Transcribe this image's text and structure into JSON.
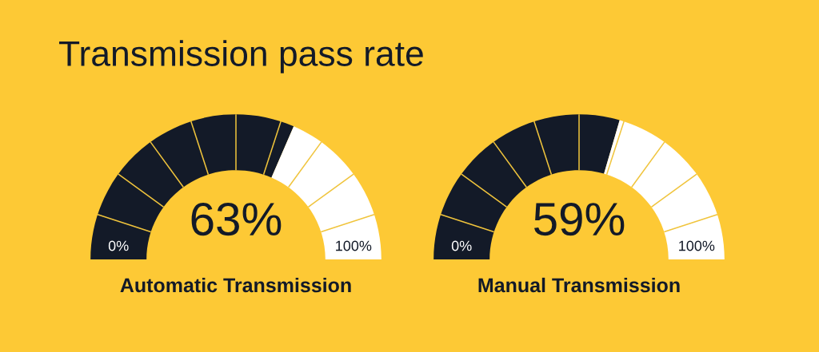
{
  "chart_data": [
    {
      "type": "donut",
      "title": "Transmission pass rate",
      "xlabel": "Automatic Transmission",
      "categories": [
        null,
        null
      ],
      "values": [
        63,
        37
      ],
      "colors": [
        "#131a28",
        "#ffffff"
      ],
      "value_labels": [
        "63%",
        null
      ],
      "annotations": [
        "0%",
        "100%"
      ]
    },
    {
      "type": "donut",
      "xlabel": "Manual Transmission",
      "categories": [
        null,
        null
      ],
      "values": [
        59,
        41
      ],
      "colors": [
        "#131a28",
        "#ffffff"
      ],
      "value_labels": [
        "59%",
        null
      ],
      "annotations": [
        "0%",
        "100%"
      ]
    }
  ]
}
